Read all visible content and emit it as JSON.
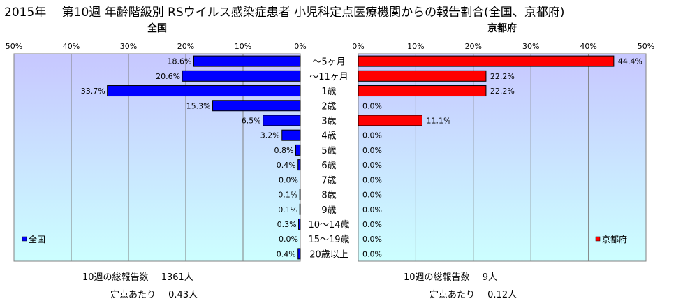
{
  "page_title": "2015年　 第10週 年齢階級別 RSウイルス感染症患者 小児科定点医療機関からの報告割合(全国、京都府)",
  "chart_data": [
    {
      "type": "bar",
      "orientation": "horizontal",
      "title": "全国",
      "categories": [
        "～5ヶ月",
        "～11ヶ月",
        "1歳",
        "2歳",
        "3歳",
        "4歳",
        "5歳",
        "6歳",
        "7歳",
        "8歳",
        "9歳",
        "10～14歳",
        "15～19歳",
        "20歳以上"
      ],
      "series": [
        {
          "name": "全国",
          "values": [
            18.6,
            20.6,
            33.7,
            15.3,
            6.5,
            3.2,
            0.8,
            0.4,
            0.0,
            0.1,
            0.1,
            0.3,
            0.0,
            0.4
          ],
          "color": "#0000ff"
        }
      ],
      "data_labels": [
        "18.6%",
        "20.6%",
        "33.7%",
        "15.3%",
        "6.5%",
        "3.2%",
        "0.8%",
        "0.4%",
        "0.0%",
        "0.1%",
        "0.1%",
        "0.3%",
        "0.0%",
        "0.4%"
      ],
      "xlim": [
        0,
        50
      ],
      "x_reversed": true,
      "xticks": [
        "50%",
        "40%",
        "30%",
        "20%",
        "10%",
        "0%"
      ],
      "legend": "bottom-left",
      "grid": true
    },
    {
      "type": "bar",
      "orientation": "horizontal",
      "title": "京都府",
      "categories": [
        "～5ヶ月",
        "～11ヶ月",
        "1歳",
        "2歳",
        "3歳",
        "4歳",
        "5歳",
        "6歳",
        "7歳",
        "8歳",
        "9歳",
        "10～14歳",
        "15～19歳",
        "20歳以上"
      ],
      "series": [
        {
          "name": "京都府",
          "values": [
            44.4,
            22.2,
            22.2,
            0.0,
            11.1,
            0.0,
            0.0,
            0.0,
            0.0,
            0.0,
            0.0,
            0.0,
            0.0,
            0.0
          ],
          "color": "#ff0000"
        }
      ],
      "data_labels": [
        "44.4%",
        "22.2%",
        "22.2%",
        "0.0%",
        "11.1%",
        "0.0%",
        "0.0%",
        "0.0%",
        "0.0%",
        "0.0%",
        "0.0%",
        "0.0%",
        "0.0%",
        "0.0%"
      ],
      "xlim": [
        0,
        50
      ],
      "x_reversed": false,
      "xticks": [
        "0%",
        "10%",
        "20%",
        "30%",
        "40%",
        "50%"
      ],
      "legend": "bottom-right",
      "grid": true
    }
  ],
  "footer": {
    "national": {
      "total_label": "10週の総報告数",
      "total_value": "1361人",
      "per_label": "定点あたり",
      "per_value": "0.43人"
    },
    "kyoto": {
      "total_label": "10週の総報告数",
      "total_value": "9人",
      "per_label": "定点あたり",
      "per_value": "0.12人"
    }
  },
  "colors": {
    "plot_bg_top": "#c7c7ff",
    "plot_bg_bottom": "#ccffff",
    "national_bar": "#0000ff",
    "kyoto_bar": "#ff0000"
  }
}
